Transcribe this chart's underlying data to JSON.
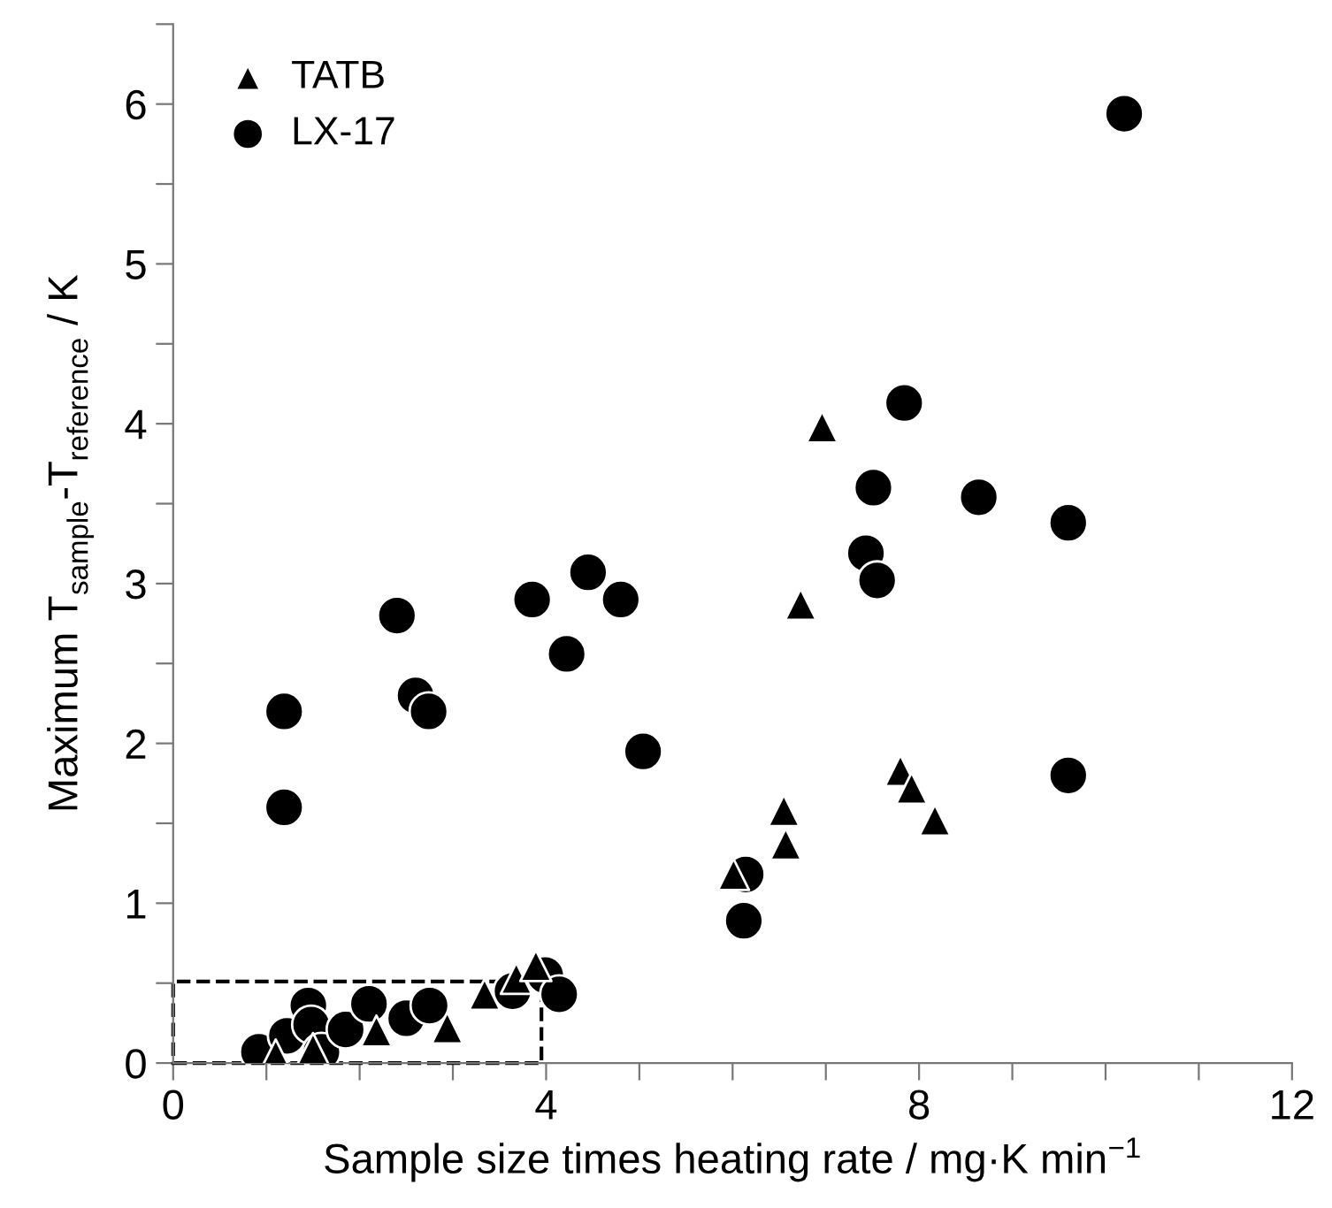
{
  "chart_data": {
    "type": "scatter",
    "xlabel": "Sample size times heating rate / mg·K min$^{−1}$",
    "ylabel": "Maximum T$_{sample}$-T$_{reference}$ / K",
    "xlim": [
      0,
      12
    ],
    "ylim": [
      0,
      6.5
    ],
    "xticks": [
      0,
      {
        "value": 1,
        "label": null
      },
      {
        "value": 2,
        "label": null
      },
      {
        "value": 3,
        "label": null
      },
      4,
      {
        "value": 5,
        "label": null
      },
      {
        "value": 6,
        "label": null
      },
      {
        "value": 7,
        "label": null
      },
      8,
      {
        "value": 9,
        "label": null
      },
      {
        "value": 10,
        "label": null
      },
      {
        "value": 11,
        "label": null
      },
      12
    ],
    "yticks": [
      0,
      {
        "value": 0.5,
        "label": null
      },
      1,
      {
        "value": 1.5,
        "label": null
      },
      2,
      {
        "value": 2.5,
        "label": null
      },
      3,
      {
        "value": 3.5,
        "label": null
      },
      4,
      {
        "value": 4.5,
        "label": null
      },
      5,
      {
        "value": 5.5,
        "label": null
      },
      6,
      {
        "value": 6.5,
        "label": null
      }
    ],
    "grid": false,
    "legend": "top left",
    "series": [
      {
        "name": "TATB",
        "color": "#000000",
        "marker": "triangle",
        "x": [
          1.1,
          1.5,
          2.18,
          2.94,
          3.34,
          3.68,
          3.89,
          6.01,
          6.55,
          6.57,
          6.73,
          6.96,
          7.8,
          7.92,
          8.17
        ],
        "values": [
          0.05,
          0.09,
          0.2,
          0.22,
          0.43,
          0.53,
          0.61,
          1.18,
          1.58,
          1.37,
          2.87,
          3.98,
          1.83,
          1.72,
          1.52
        ]
      },
      {
        "name": "LX-17",
        "color": "#000000",
        "marker": "circle",
        "x": [
          0.92,
          1.22,
          1.45,
          1.48,
          1.59,
          1.85,
          2.1,
          2.5,
          2.75,
          3.64,
          3.99,
          4.14,
          1.19,
          1.19,
          2.4,
          2.6,
          2.74,
          3.85,
          4.22,
          4.45,
          4.8,
          5.04,
          6.12,
          6.14,
          7.43,
          7.51,
          7.55,
          7.84,
          8.64,
          9.6,
          9.6,
          10.2
        ],
        "values": [
          0.07,
          0.17,
          0.36,
          0.24,
          0.07,
          0.21,
          0.37,
          0.28,
          0.36,
          0.45,
          0.55,
          0.43,
          2.2,
          1.6,
          2.8,
          2.3,
          2.2,
          2.9,
          2.56,
          3.07,
          2.9,
          1.95,
          0.89,
          1.18,
          3.19,
          3.6,
          3.02,
          4.13,
          3.54,
          3.38,
          1.8,
          5.94
        ]
      }
    ]
  }
}
